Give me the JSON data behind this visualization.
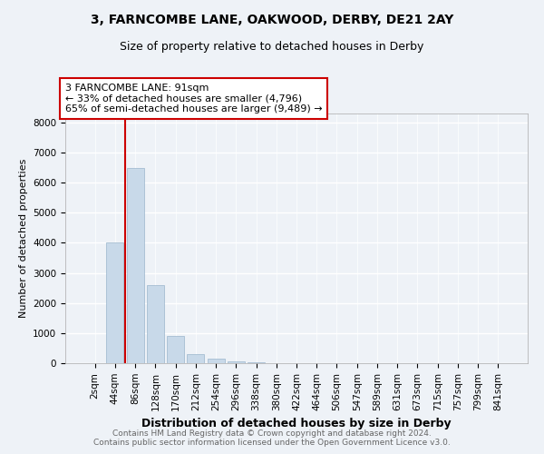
{
  "title1": "3, FARNCOMBE LANE, OAKWOOD, DERBY, DE21 2AY",
  "title2": "Size of property relative to detached houses in Derby",
  "xlabel": "Distribution of detached houses by size in Derby",
  "ylabel": "Number of detached properties",
  "bar_labels": [
    "2sqm",
    "44sqm",
    "86sqm",
    "128sqm",
    "170sqm",
    "212sqm",
    "254sqm",
    "296sqm",
    "338sqm",
    "380sqm",
    "422sqm",
    "464sqm",
    "506sqm",
    "547sqm",
    "589sqm",
    "631sqm",
    "673sqm",
    "715sqm",
    "757sqm",
    "799sqm",
    "841sqm"
  ],
  "bar_values": [
    0,
    4000,
    6500,
    2600,
    900,
    300,
    150,
    50,
    25,
    10,
    5,
    0,
    0,
    0,
    0,
    0,
    0,
    0,
    0,
    0,
    0
  ],
  "bar_color": "#c8d9e9",
  "bar_edgecolor": "#9ab5cc",
  "vline_x": 1.5,
  "annotation_title": "3 FARNCOMBE LANE: 91sqm",
  "annotation_line1": "← 33% of detached houses are smaller (4,796)",
  "annotation_line2": "65% of semi-detached houses are larger (9,489) →",
  "vline_color": "#cc0000",
  "annotation_box_color": "#cc0000",
  "ylim": [
    0,
    8300
  ],
  "yticks": [
    0,
    1000,
    2000,
    3000,
    4000,
    5000,
    6000,
    7000,
    8000
  ],
  "footer1": "Contains HM Land Registry data © Crown copyright and database right 2024.",
  "footer2": "Contains public sector information licensed under the Open Government Licence v3.0.",
  "background_color": "#eef2f7",
  "plot_background": "#eef2f7",
  "grid_color": "#ffffff",
  "title1_fontsize": 10,
  "title2_fontsize": 9,
  "ylabel_fontsize": 8,
  "xlabel_fontsize": 9,
  "tick_fontsize": 7.5,
  "annotation_fontsize": 8,
  "footer_fontsize": 6.5
}
